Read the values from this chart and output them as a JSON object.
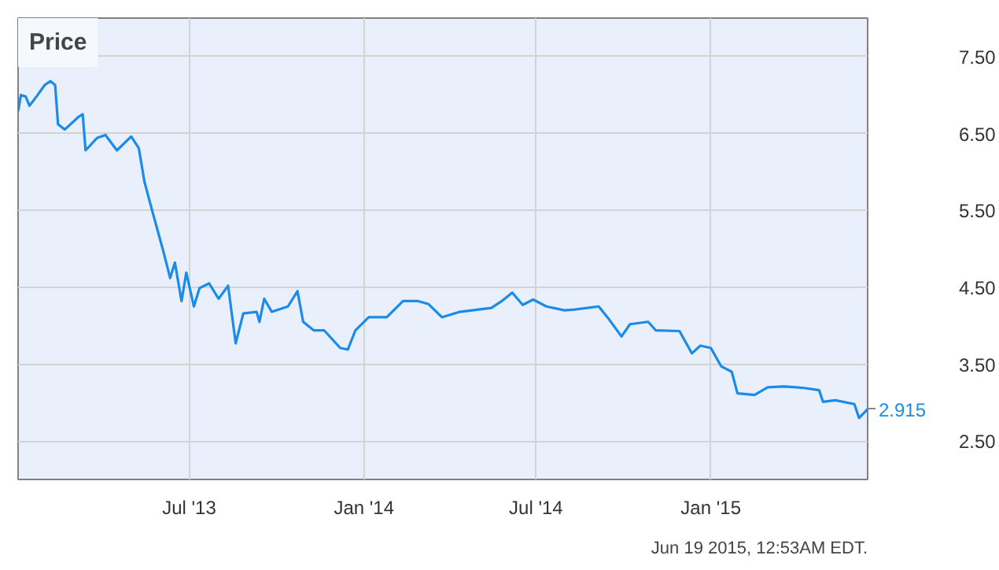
{
  "chart_data": {
    "type": "line",
    "title": "Price",
    "x": [
      "2013-01-02",
      "2013-01-05",
      "2013-01-10",
      "2013-01-14",
      "2013-01-22",
      "2013-01-30",
      "2013-02-05",
      "2013-02-10",
      "2013-02-13",
      "2013-02-20",
      "2013-03-07",
      "2013-03-11",
      "2013-03-14",
      "2013-03-26",
      "2013-04-04",
      "2013-04-16",
      "2013-05-01",
      "2013-05-09",
      "2013-05-15",
      "2013-05-23",
      "2013-05-29",
      "2013-06-04",
      "2013-06-11",
      "2013-06-16",
      "2013-06-23",
      "2013-06-28",
      "2013-07-06",
      "2013-07-12",
      "2013-07-22",
      "2013-08-01",
      "2013-08-11",
      "2013-08-19",
      "2013-08-27",
      "2013-09-10",
      "2013-09-13",
      "2013-09-18",
      "2013-09-26",
      "2013-10-13",
      "2013-10-23",
      "2013-10-29",
      "2013-11-09",
      "2013-11-20",
      "2013-12-07",
      "2013-12-15",
      "2013-12-23",
      "2014-01-06",
      "2014-01-25",
      "2014-02-11",
      "2014-02-27",
      "2014-03-10",
      "2014-03-24",
      "2014-04-12",
      "2014-05-15",
      "2014-05-26",
      "2014-06-06",
      "2014-06-17",
      "2014-06-28",
      "2014-07-12",
      "2014-07-31",
      "2014-08-11",
      "2014-09-05",
      "2014-09-16",
      "2014-09-29",
      "2014-10-08",
      "2014-10-27",
      "2014-11-04",
      "2014-11-29",
      "2014-12-12",
      "2014-12-21",
      "2015-01-01",
      "2015-01-12",
      "2015-01-23",
      "2015-01-29",
      "2015-02-16",
      "2015-03-02",
      "2015-03-19",
      "2015-04-09",
      "2015-04-25",
      "2015-04-29",
      "2015-05-12",
      "2015-06-01",
      "2015-06-06",
      "2015-06-15"
    ],
    "series": [
      {
        "color": "#1a8be8",
        "values": [
          6.79,
          7.0,
          6.98,
          6.86,
          6.99,
          7.13,
          7.18,
          7.13,
          6.62,
          6.55,
          6.72,
          6.75,
          6.28,
          6.44,
          6.48,
          6.28,
          6.46,
          6.31,
          5.87,
          5.5,
          5.23,
          4.96,
          4.62,
          4.82,
          4.32,
          4.69,
          4.25,
          4.49,
          4.55,
          4.35,
          4.52,
          3.77,
          4.16,
          4.18,
          4.05,
          4.35,
          4.18,
          4.25,
          4.45,
          4.05,
          3.94,
          3.94,
          3.71,
          3.69,
          3.94,
          4.11,
          4.11,
          4.32,
          4.32,
          4.28,
          4.11,
          4.18,
          4.23,
          4.32,
          4.43,
          4.27,
          4.34,
          4.25,
          4.2,
          4.21,
          4.25,
          4.08,
          3.86,
          4.02,
          4.05,
          3.94,
          3.93,
          3.64,
          3.74,
          3.71,
          3.47,
          3.4,
          3.12,
          3.1,
          3.2,
          3.21,
          3.19,
          3.16,
          3.01,
          3.03,
          2.98,
          2.8,
          2.915
        ]
      }
    ],
    "xlim": [
      "2013-01-02",
      "2015-06-15"
    ],
    "xticks": [
      {
        "value": "2013-07-01",
        "label": "Jul '13"
      },
      {
        "value": "2014-01-01",
        "label": "Jan '14"
      },
      {
        "value": "2014-07-01",
        "label": "Jul '14"
      },
      {
        "value": "2015-01-01",
        "label": "Jan '15"
      }
    ],
    "ylim": [
      2,
      8
    ],
    "yticks": [
      {
        "value": 2.5,
        "label": "2.50"
      },
      {
        "value": 3.5,
        "label": "3.50"
      },
      {
        "value": 4.5,
        "label": "4.50"
      },
      {
        "value": 5.5,
        "label": "5.50"
      },
      {
        "value": 6.5,
        "label": "6.50"
      },
      {
        "value": 7.5,
        "label": "7.50"
      }
    ],
    "grid": true,
    "annotations": [
      "2.915",
      "Jun 19 2015, 12:53AM EDT."
    ]
  }
}
